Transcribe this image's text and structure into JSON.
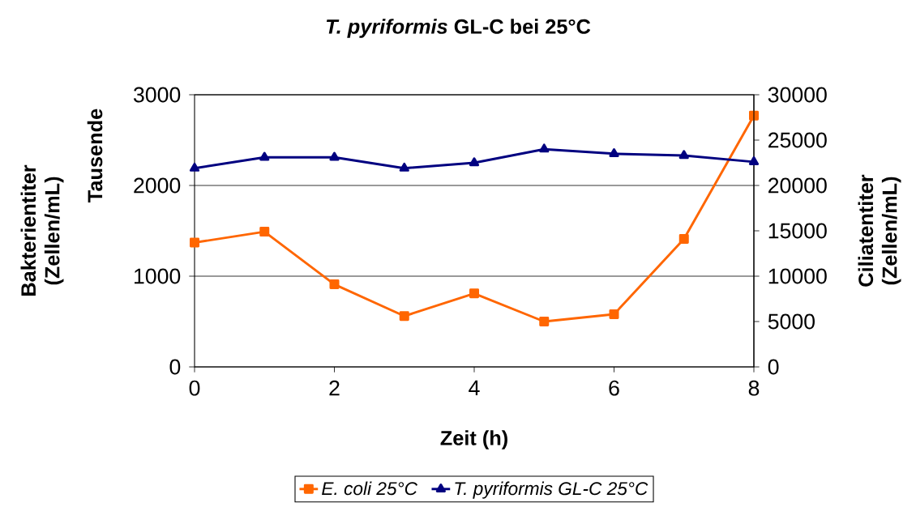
{
  "chart_data": {
    "type": "line",
    "title": "*T. pyriformis* GL-C bei 25°C",
    "xlabel": "Zeit (h)",
    "ylabel": "Bakterientiter (Zellen/mL)",
    "y2label": "Ciliatentiter (Zellen/mL)",
    "annotations": [
      "Tausende"
    ],
    "x": [
      0,
      1,
      2,
      3,
      4,
      5,
      6,
      7,
      8
    ],
    "series": [
      {
        "name": "E. coli 25°C",
        "color": "#ff6600",
        "marker": "square",
        "axis": "y",
        "values": [
          1370,
          1490,
          910,
          560,
          810,
          500,
          580,
          1410,
          2770
        ]
      },
      {
        "name": "T. pyriformis GL-C 25°C",
        "color": "#000080",
        "marker": "triangle",
        "axis": "y2",
        "values": [
          21900,
          23100,
          23100,
          21900,
          22500,
          24000,
          23500,
          23300,
          22600
        ]
      }
    ],
    "xlim": [
      0,
      8
    ],
    "xticks": [
      0,
      2,
      4,
      6,
      8
    ],
    "ylim": [
      0,
      3000
    ],
    "yticks": [
      0,
      1000,
      2000,
      3000
    ],
    "y2lim": [
      0,
      30000
    ],
    "y2ticks": [
      0,
      5000,
      10000,
      15000,
      20000,
      25000,
      30000
    ],
    "grid": "y",
    "legend": "bottom",
    "line_style": "solid"
  }
}
